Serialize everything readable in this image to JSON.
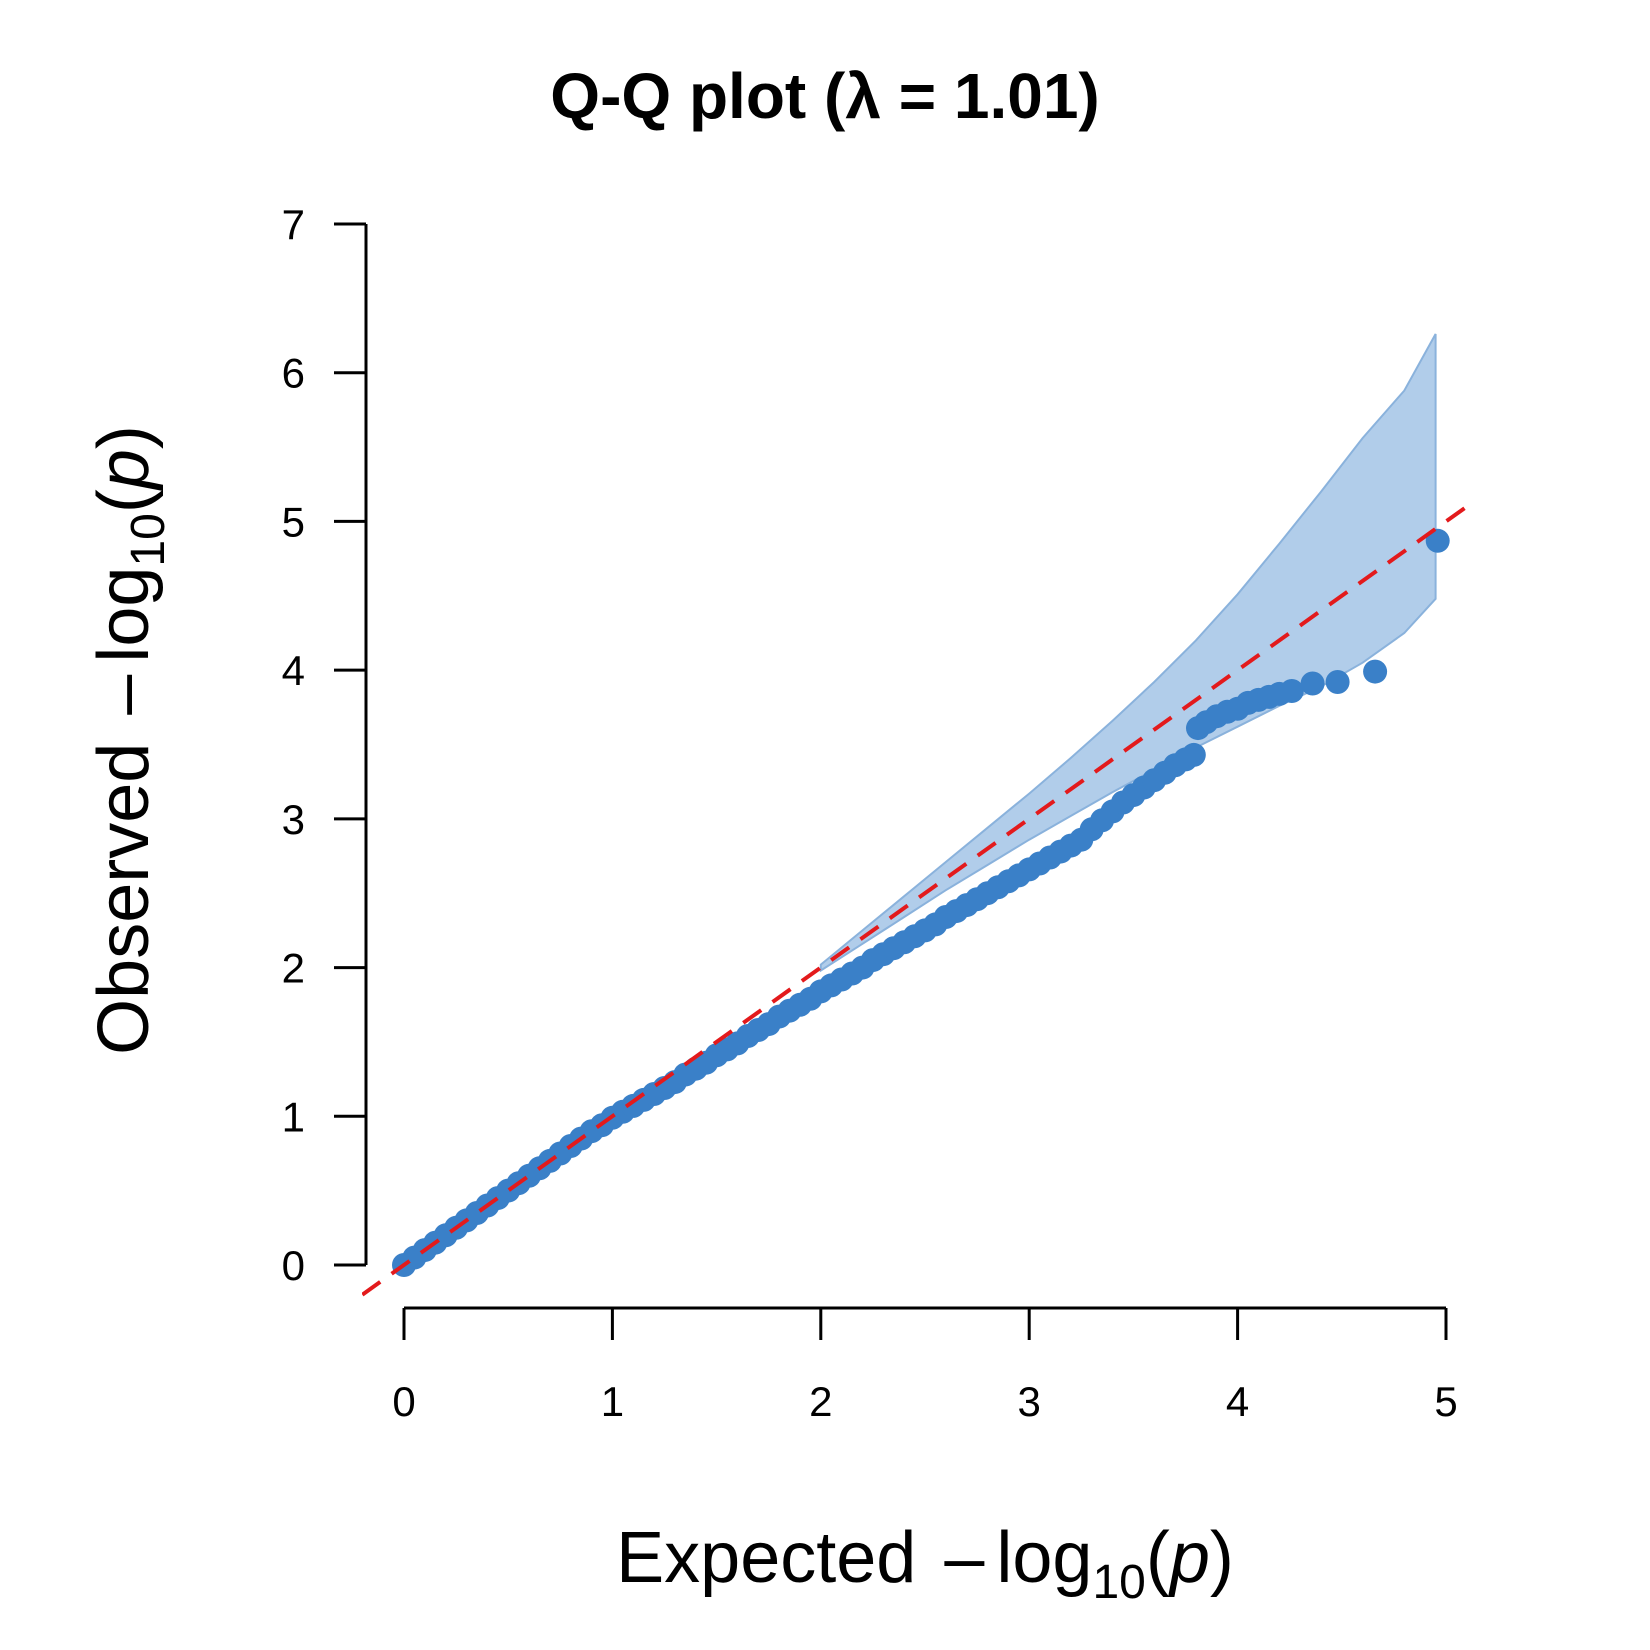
{
  "chart_data": {
    "type": "scatter",
    "title": "Q-Q plot (λ = 1.01)",
    "xlabel": {
      "prefix": "Expected",
      "minus": "–",
      "log": "log",
      "sub": "10",
      "open": "(",
      "var": "p",
      "close": ")"
    },
    "ylabel": {
      "prefix": "Observed",
      "minus": "–",
      "log": "log",
      "sub": "10",
      "open": "(",
      "var": "p",
      "close": ")"
    },
    "xlim": [
      0,
      5
    ],
    "ylim": [
      0,
      7
    ],
    "xticks": [
      "0",
      "1",
      "2",
      "3",
      "4",
      "5"
    ],
    "yticks": [
      "0",
      "1",
      "2",
      "3",
      "4",
      "5",
      "6",
      "7"
    ],
    "grid": false,
    "colors": {
      "points": "#3a80c8",
      "band": "#a9c8e8",
      "band_edge": "#8ab2dc",
      "reference_line": "#e31a1c"
    },
    "reference_line": {
      "style": "dashed",
      "slope": 1,
      "intercept": 0
    },
    "confidence_band": {
      "x": [
        2.0,
        2.2,
        2.4,
        2.6,
        2.8,
        3.0,
        3.2,
        3.4,
        3.6,
        3.8,
        4.0,
        4.2,
        4.4,
        4.6,
        4.8,
        4.95
      ],
      "lower": [
        1.98,
        2.16,
        2.34,
        2.52,
        2.69,
        2.86,
        3.02,
        3.18,
        3.33,
        3.48,
        3.62,
        3.76,
        3.89,
        4.05,
        4.25,
        4.48
      ],
      "upper": [
        2.02,
        2.25,
        2.48,
        2.71,
        2.94,
        3.17,
        3.41,
        3.66,
        3.92,
        4.2,
        4.51,
        4.85,
        5.2,
        5.56,
        5.88,
        6.26
      ]
    },
    "series": [
      {
        "x": [
          0.0,
          0.05,
          0.1,
          0.15,
          0.2,
          0.25,
          0.3,
          0.35,
          0.4,
          0.45,
          0.5,
          0.55,
          0.6,
          0.65,
          0.7,
          0.75,
          0.8,
          0.85,
          0.9,
          0.95,
          1.0,
          1.05,
          1.1,
          1.15,
          1.2,
          1.25,
          1.3,
          1.35,
          1.4,
          1.45,
          1.5,
          1.55,
          1.6,
          1.65,
          1.7,
          1.75,
          1.8,
          1.85,
          1.9,
          1.95,
          2.0,
          2.05,
          2.1,
          2.15,
          2.2,
          2.25,
          2.3,
          2.35,
          2.4,
          2.45,
          2.5,
          2.55,
          2.6,
          2.65,
          2.7,
          2.75,
          2.8,
          2.85,
          2.9,
          2.95,
          3.0,
          3.05,
          3.1,
          3.15,
          3.2,
          3.25,
          3.3,
          3.35,
          3.4,
          3.45,
          3.5,
          3.55,
          3.6,
          3.65,
          3.7,
          3.75,
          3.79,
          3.81,
          3.85,
          3.9,
          3.95,
          4.0,
          4.05,
          4.1,
          4.15,
          4.2,
          4.26,
          4.36,
          4.48,
          4.66,
          4.96
        ],
        "y": [
          0.0,
          0.05,
          0.1,
          0.15,
          0.2,
          0.25,
          0.3,
          0.35,
          0.4,
          0.45,
          0.5,
          0.55,
          0.6,
          0.65,
          0.7,
          0.75,
          0.8,
          0.85,
          0.9,
          0.94,
          0.99,
          1.03,
          1.07,
          1.11,
          1.15,
          1.19,
          1.23,
          1.28,
          1.32,
          1.36,
          1.41,
          1.45,
          1.49,
          1.54,
          1.58,
          1.62,
          1.67,
          1.71,
          1.75,
          1.79,
          1.84,
          1.88,
          1.92,
          1.96,
          2.0,
          2.05,
          2.09,
          2.13,
          2.17,
          2.21,
          2.25,
          2.29,
          2.34,
          2.38,
          2.42,
          2.46,
          2.5,
          2.54,
          2.58,
          2.62,
          2.66,
          2.7,
          2.74,
          2.78,
          2.82,
          2.86,
          2.93,
          2.99,
          3.05,
          3.11,
          3.16,
          3.21,
          3.26,
          3.31,
          3.36,
          3.4,
          3.43,
          3.61,
          3.65,
          3.69,
          3.72,
          3.74,
          3.78,
          3.8,
          3.82,
          3.84,
          3.86,
          3.91,
          3.92,
          3.99,
          4.87
        ]
      }
    ]
  }
}
